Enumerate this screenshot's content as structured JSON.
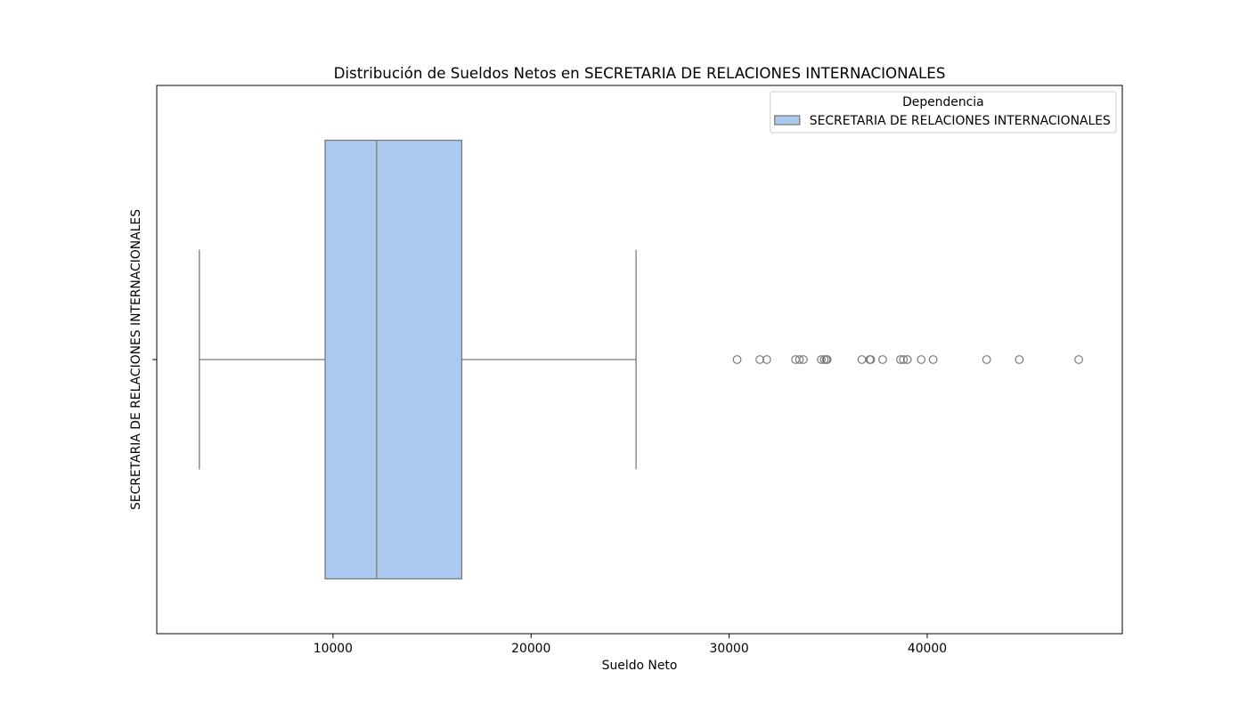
{
  "chart_data": {
    "type": "box",
    "orientation": "horizontal",
    "title": "Distribución de Sueldos Netos en SECRETARIA DE RELACIONES INTERNACIONALES",
    "xlabel": "Sueldo Neto",
    "ylabel": "SECRETARIA DE RELACIONES INTERNACIONALES",
    "xlim": [
      1100,
      49850
    ],
    "xticks": [
      10000,
      20000,
      30000,
      40000
    ],
    "xtick_labels": [
      "10000",
      "20000",
      "30000",
      "40000"
    ],
    "grid": false,
    "legend": {
      "title": "Dependencia",
      "position": "top-right"
    },
    "series": [
      {
        "name": "SECRETARIA DE RELACIONES INTERNACIONALES",
        "whisker_low": 3250,
        "q1": 9600,
        "median": 12200,
        "q3": 16500,
        "whisker_high": 25300,
        "outliers": [
          30400,
          31550,
          31900,
          33350,
          33550,
          33750,
          34650,
          34800,
          34900,
          34950,
          36700,
          37100,
          37150,
          37750,
          38650,
          38800,
          39000,
          39700,
          40300,
          43000,
          44650,
          47650
        ]
      }
    ]
  },
  "colors": {
    "box_fill": "#abc9ee",
    "line": "#7a7a7a",
    "axes": "#000000",
    "legend_border": "#cccccc"
  }
}
